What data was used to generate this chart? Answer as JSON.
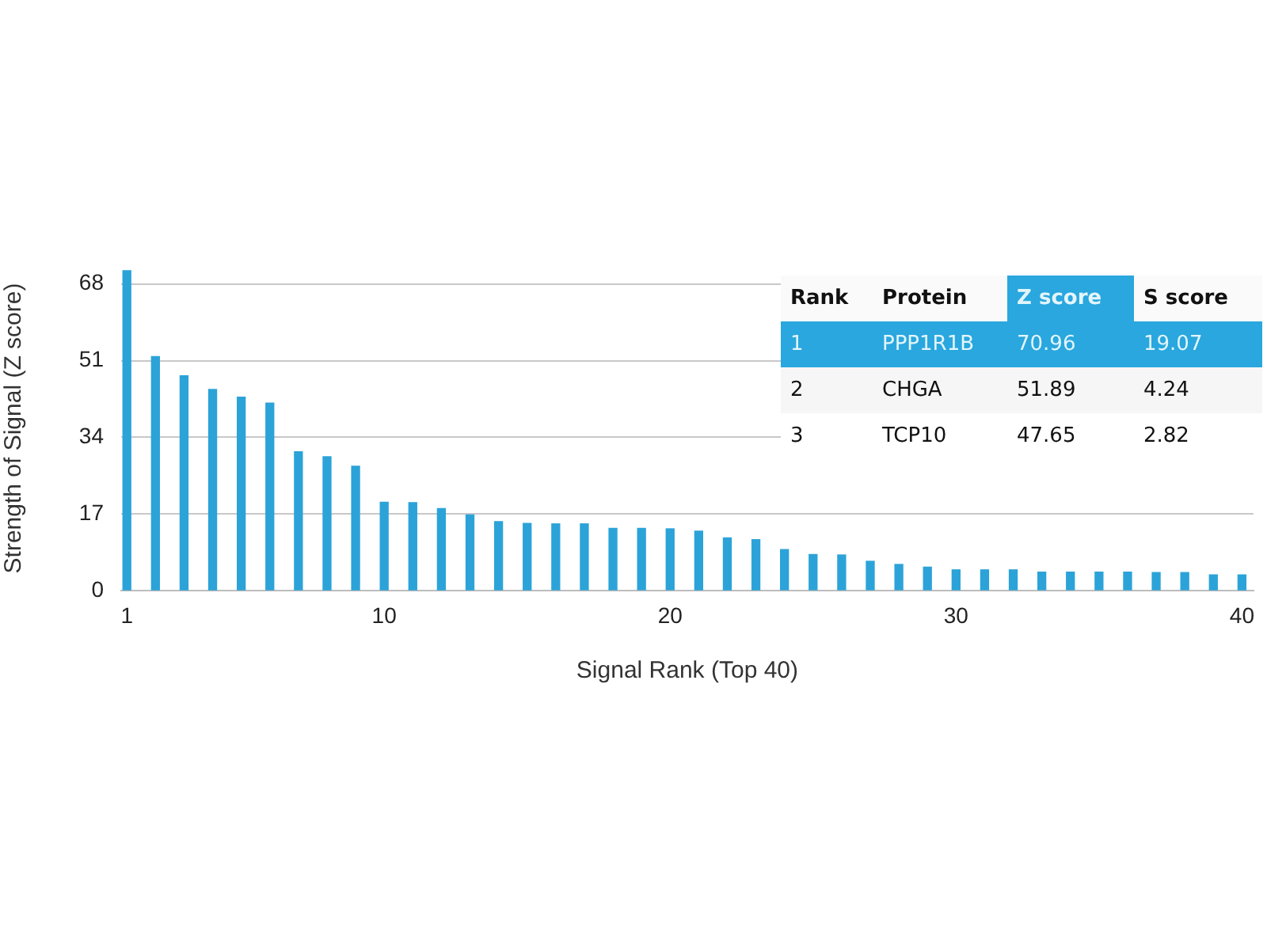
{
  "chart_data": {
    "type": "bar",
    "xlabel": "Signal Rank (Top 40)",
    "ylabel": "Strength of Signal (Z score)",
    "x": [
      1,
      2,
      3,
      4,
      5,
      6,
      7,
      8,
      9,
      10,
      11,
      12,
      13,
      14,
      15,
      16,
      17,
      18,
      19,
      20,
      21,
      22,
      23,
      24,
      25,
      26,
      27,
      28,
      29,
      30,
      31,
      32,
      33,
      34,
      35,
      36,
      37,
      38,
      39,
      40
    ],
    "values": [
      70.96,
      51.89,
      47.65,
      44.6,
      42.9,
      41.6,
      30.8,
      29.7,
      27.6,
      19.6,
      19.5,
      18.2,
      16.8,
      15.3,
      14.9,
      14.8,
      14.8,
      13.8,
      13.8,
      13.7,
      13.2,
      11.7,
      11.3,
      9.1,
      8.0,
      7.9,
      6.5,
      5.8,
      5.2,
      4.6,
      4.6,
      4.6,
      4.1,
      4.1,
      4.1,
      4.1,
      4.0,
      4.0,
      3.5,
      3.5
    ],
    "color": "#2ba3d8",
    "xlim": [
      0.8,
      40.4
    ],
    "xticks": [
      1,
      10,
      20,
      30,
      40
    ],
    "ylim": [
      0,
      72
    ],
    "yticks": [
      0,
      17,
      34,
      51,
      68
    ],
    "grid": "y",
    "annotations": [
      "Rank",
      "Protein",
      "Z score",
      "S score",
      "1",
      "PPP1R1B",
      "70.96",
      "19.07",
      "2",
      "CHGA",
      "51.89",
      "4.24",
      "3",
      "TCP10",
      "47.65",
      "2.82"
    ]
  }
}
